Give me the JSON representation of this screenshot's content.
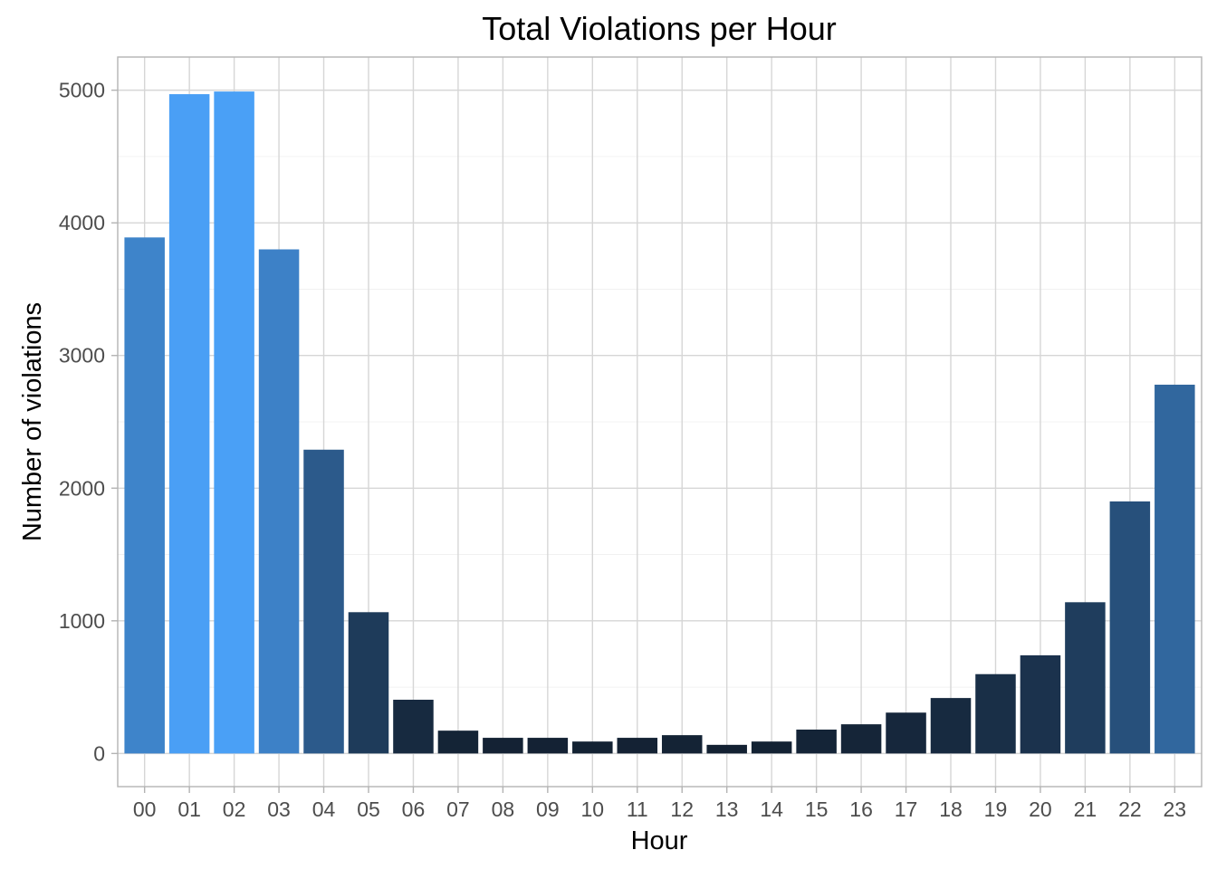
{
  "chart_data": {
    "type": "bar",
    "title": "Total Violations per Hour",
    "xlabel": "Hour",
    "ylabel": "Number of violations",
    "categories": [
      "00",
      "01",
      "02",
      "03",
      "04",
      "05",
      "06",
      "07",
      "08",
      "09",
      "10",
      "11",
      "12",
      "13",
      "14",
      "15",
      "16",
      "17",
      "18",
      "19",
      "20",
      "21",
      "22",
      "23"
    ],
    "values": [
      3890,
      4970,
      4990,
      3800,
      2290,
      1065,
      405,
      172,
      118,
      118,
      90,
      118,
      138,
      65,
      90,
      180,
      220,
      308,
      418,
      598,
      740,
      1140,
      1900,
      2780
    ],
    "ylim": [
      -250,
      5250
    ],
    "yticks": [
      0,
      1000,
      2000,
      3000,
      4000,
      5000
    ],
    "grid": true,
    "legend": "none",
    "fill_scale": {
      "low": "#132132",
      "high": "#4aa0f6"
    }
  }
}
